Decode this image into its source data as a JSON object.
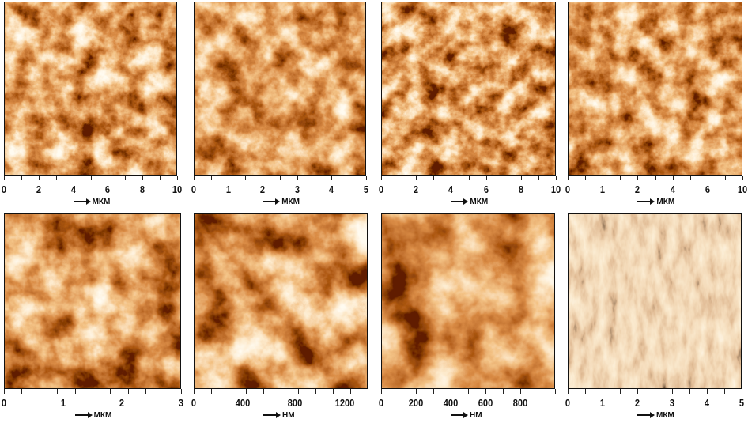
{
  "colormap": [
    "#1e0300",
    "#6e1a02",
    "#b44410",
    "#e58a3c",
    "#fbd29a",
    "#fff6e0"
  ],
  "panels": [
    {
      "ticks": [
        "0",
        "2",
        "4",
        "6",
        "8",
        "10"
      ],
      "unit": "МКМ",
      "mode": "copper",
      "freq": 0.035,
      "seed": 3
    },
    {
      "ticks": [
        "0",
        "1",
        "2",
        "3",
        "4",
        "5"
      ],
      "unit": "МКМ",
      "mode": "copper",
      "freq": 0.03,
      "seed": 7
    },
    {
      "ticks": [
        "0",
        "2",
        "4",
        "6",
        "8",
        "10"
      ],
      "unit": "МКМ",
      "mode": "copper",
      "freq": 0.04,
      "seed": 11
    },
    {
      "ticks": [
        "0",
        "1",
        "2",
        "4",
        "6",
        "10"
      ],
      "unit": "МКМ",
      "mode": "copper",
      "freq": 0.035,
      "seed": 19
    },
    {
      "ticks": [
        "0",
        "1",
        "2",
        "3"
      ],
      "unit": "МКМ",
      "mode": "copper",
      "freq": 0.022,
      "seed": 23
    },
    {
      "ticks": [
        "0",
        "400",
        "800",
        "1200"
      ],
      "unit": "НМ",
      "mode": "copper",
      "freq": 0.02,
      "seed": 29
    },
    {
      "ticks": [
        "0",
        "200",
        "400",
        "600",
        "800"
      ],
      "unit": "НМ",
      "mode": "copper",
      "freq": 0.016,
      "seed": 31
    },
    {
      "ticks": [
        "0",
        "1",
        "2",
        "3",
        "4",
        "5"
      ],
      "unit": "МКМ",
      "mode": "phase",
      "freq": 0.08,
      "seed": 37
    }
  ]
}
